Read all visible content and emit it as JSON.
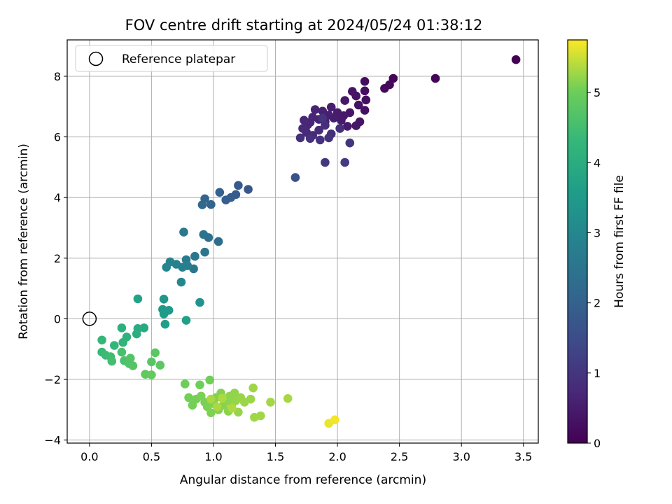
{
  "chart_data": {
    "type": "scatter",
    "title": "FOV centre drift starting at 2024/05/24 01:38:12",
    "xlabel": "Angular distance from reference (arcmin)",
    "ylabel": "Rotation from reference (arcmin)",
    "xlim": [
      -0.18,
      3.62
    ],
    "ylim": [
      -4.1,
      9.2
    ],
    "xticks": [
      0.0,
      0.5,
      1.0,
      1.5,
      2.0,
      2.5,
      3.0,
      3.5
    ],
    "xtick_labels": [
      "0.0",
      "0.5",
      "1.0",
      "1.5",
      "2.0",
      "2.5",
      "3.0",
      "3.5"
    ],
    "yticks": [
      -4,
      -2,
      0,
      2,
      4,
      6,
      8
    ],
    "ytick_labels": [
      "−4",
      "−2",
      "0",
      "2",
      "4",
      "6",
      "8"
    ],
    "grid": true,
    "legend": {
      "position": "top-left",
      "entries": [
        "Reference platepar"
      ]
    },
    "reference_point": {
      "x": 0.0,
      "y": 0.0
    },
    "colorbar": {
      "label": "Hours from first FF file",
      "min": 0,
      "max": 5.75,
      "ticks": [
        0,
        1,
        2,
        3,
        4,
        5
      ],
      "colormap": "viridis"
    },
    "points": [
      [
        3.44,
        8.55,
        0.0
      ],
      [
        2.79,
        7.93,
        0.05
      ],
      [
        2.45,
        7.93,
        0.1
      ],
      [
        2.42,
        7.72,
        0.12
      ],
      [
        2.38,
        7.6,
        0.15
      ],
      [
        2.22,
        7.83,
        0.2
      ],
      [
        2.22,
        7.52,
        0.22
      ],
      [
        2.23,
        7.22,
        0.25
      ],
      [
        2.22,
        6.88,
        0.28
      ],
      [
        2.17,
        7.05,
        0.3
      ],
      [
        2.15,
        7.35,
        0.32
      ],
      [
        2.12,
        7.5,
        0.34
      ],
      [
        2.18,
        6.5,
        0.36
      ],
      [
        2.15,
        6.37,
        0.38
      ],
      [
        2.1,
        6.8,
        0.4
      ],
      [
        2.06,
        7.2,
        0.42
      ],
      [
        2.05,
        6.7,
        0.44
      ],
      [
        2.08,
        6.35,
        0.46
      ],
      [
        2.03,
        6.55,
        0.48
      ],
      [
        2.0,
        6.8,
        0.5
      ],
      [
        1.97,
        6.62,
        0.52
      ],
      [
        1.95,
        6.98,
        0.54
      ],
      [
        1.93,
        6.72,
        0.56
      ],
      [
        1.9,
        6.5,
        0.58
      ],
      [
        1.88,
        6.85,
        0.6
      ],
      [
        1.85,
        6.58,
        0.62
      ],
      [
        1.82,
        6.9,
        0.64
      ],
      [
        1.8,
        6.65,
        0.66
      ],
      [
        1.78,
        6.48,
        0.68
      ],
      [
        1.76,
        6.4,
        0.7
      ],
      [
        1.73,
        6.55,
        0.72
      ],
      [
        1.72,
        6.28,
        0.74
      ],
      [
        1.75,
        6.15,
        0.76
      ],
      [
        1.8,
        6.05,
        0.78
      ],
      [
        1.85,
        6.22,
        0.8
      ],
      [
        1.9,
        6.38,
        0.82
      ],
      [
        1.95,
        6.1,
        0.84
      ],
      [
        2.02,
        6.28,
        0.86
      ],
      [
        1.7,
        5.97,
        0.88
      ],
      [
        1.78,
        5.95,
        0.9
      ],
      [
        1.86,
        5.9,
        0.92
      ],
      [
        1.93,
        5.97,
        0.94
      ],
      [
        1.88,
        6.62,
        0.96
      ],
      [
        2.1,
        5.8,
        1.0
      ],
      [
        1.9,
        5.16,
        1.05
      ],
      [
        2.06,
        5.16,
        1.1
      ],
      [
        1.66,
        4.66,
        1.6
      ],
      [
        1.28,
        4.27,
        1.75
      ],
      [
        1.2,
        4.4,
        1.8
      ],
      [
        1.18,
        4.1,
        1.85
      ],
      [
        1.14,
        4.0,
        1.9
      ],
      [
        1.1,
        3.92,
        1.95
      ],
      [
        1.05,
        4.17,
        2.0
      ],
      [
        0.98,
        3.77,
        2.05
      ],
      [
        0.93,
        3.96,
        2.1
      ],
      [
        0.91,
        3.76,
        2.15
      ],
      [
        1.04,
        2.55,
        2.3
      ],
      [
        0.96,
        2.68,
        2.4
      ],
      [
        0.92,
        2.78,
        2.45
      ],
      [
        0.93,
        2.2,
        2.5
      ],
      [
        0.84,
        1.65,
        2.55
      ],
      [
        0.85,
        2.06,
        2.6
      ],
      [
        0.76,
        2.86,
        2.65
      ],
      [
        0.78,
        1.95,
        2.7
      ],
      [
        0.79,
        1.75,
        2.75
      ],
      [
        0.75,
        1.7,
        2.8
      ],
      [
        0.7,
        1.8,
        2.85
      ],
      [
        0.65,
        1.88,
        2.9
      ],
      [
        0.62,
        1.7,
        2.95
      ],
      [
        0.74,
        1.21,
        3.0
      ],
      [
        0.89,
        0.54,
        3.3
      ],
      [
        0.6,
        0.65,
        3.4
      ],
      [
        0.59,
        0.31,
        3.45
      ],
      [
        0.64,
        0.28,
        3.5
      ],
      [
        0.6,
        0.16,
        3.55
      ],
      [
        0.61,
        -0.18,
        3.6
      ],
      [
        0.78,
        -0.05,
        3.65
      ],
      [
        0.39,
        0.66,
        3.7
      ],
      [
        0.44,
        -0.3,
        3.9
      ],
      [
        0.39,
        -0.32,
        4.0
      ],
      [
        0.38,
        -0.5,
        4.05
      ],
      [
        0.26,
        -0.3,
        4.1
      ],
      [
        0.3,
        -0.6,
        4.15
      ],
      [
        0.27,
        -0.78,
        4.2
      ],
      [
        0.2,
        -0.88,
        4.25
      ],
      [
        0.1,
        -0.7,
        4.3
      ],
      [
        0.1,
        -1.1,
        4.35
      ],
      [
        0.13,
        -1.2,
        4.4
      ],
      [
        0.17,
        -1.25,
        4.45
      ],
      [
        0.18,
        -1.4,
        4.5
      ],
      [
        0.26,
        -1.1,
        4.55
      ],
      [
        0.28,
        -1.38,
        4.6
      ],
      [
        0.32,
        -1.48,
        4.65
      ],
      [
        0.33,
        -1.3,
        4.7
      ],
      [
        0.35,
        -1.55,
        4.72
      ],
      [
        0.5,
        -1.42,
        4.75
      ],
      [
        0.53,
        -1.12,
        4.78
      ],
      [
        0.57,
        -1.53,
        4.8
      ],
      [
        0.45,
        -1.83,
        4.85
      ],
      [
        0.5,
        -1.85,
        4.9
      ],
      [
        0.77,
        -2.15,
        5.0
      ],
      [
        0.89,
        -2.18,
        5.02
      ],
      [
        0.97,
        -2.02,
        5.04
      ],
      [
        0.8,
        -2.6,
        5.05
      ],
      [
        0.83,
        -2.85,
        5.06
      ],
      [
        0.86,
        -2.65,
        5.07
      ],
      [
        0.9,
        -2.55,
        5.08
      ],
      [
        0.93,
        -2.75,
        5.09
      ],
      [
        0.95,
        -2.9,
        5.1
      ],
      [
        0.98,
        -3.1,
        5.11
      ],
      [
        1.0,
        -2.8,
        5.12
      ],
      [
        1.02,
        -2.6,
        5.13
      ],
      [
        1.04,
        -3.0,
        5.14
      ],
      [
        1.06,
        -2.45,
        5.15
      ],
      [
        1.08,
        -2.85,
        5.16
      ],
      [
        1.1,
        -2.7,
        5.17
      ],
      [
        1.12,
        -3.05,
        5.18
      ],
      [
        1.13,
        -2.55,
        5.19
      ],
      [
        1.15,
        -2.8,
        5.2
      ],
      [
        1.17,
        -2.45,
        5.21
      ],
      [
        1.18,
        -2.7,
        5.22
      ],
      [
        1.2,
        -3.08,
        5.23
      ],
      [
        1.22,
        -2.6,
        5.24
      ],
      [
        1.25,
        -2.75,
        5.25
      ],
      [
        1.3,
        -2.65,
        5.26
      ],
      [
        1.32,
        -2.28,
        5.27
      ],
      [
        1.33,
        -3.25,
        5.28
      ],
      [
        1.38,
        -3.2,
        5.29
      ],
      [
        1.46,
        -2.75,
        5.3
      ],
      [
        1.6,
        -2.63,
        5.32
      ],
      [
        0.98,
        -2.65,
        5.33
      ],
      [
        1.03,
        -2.9,
        5.34
      ],
      [
        1.07,
        -2.62,
        5.35
      ],
      [
        1.15,
        -2.95,
        5.36
      ],
      [
        1.93,
        -3.45,
        5.65
      ],
      [
        1.98,
        -3.33,
        5.7
      ]
    ]
  }
}
